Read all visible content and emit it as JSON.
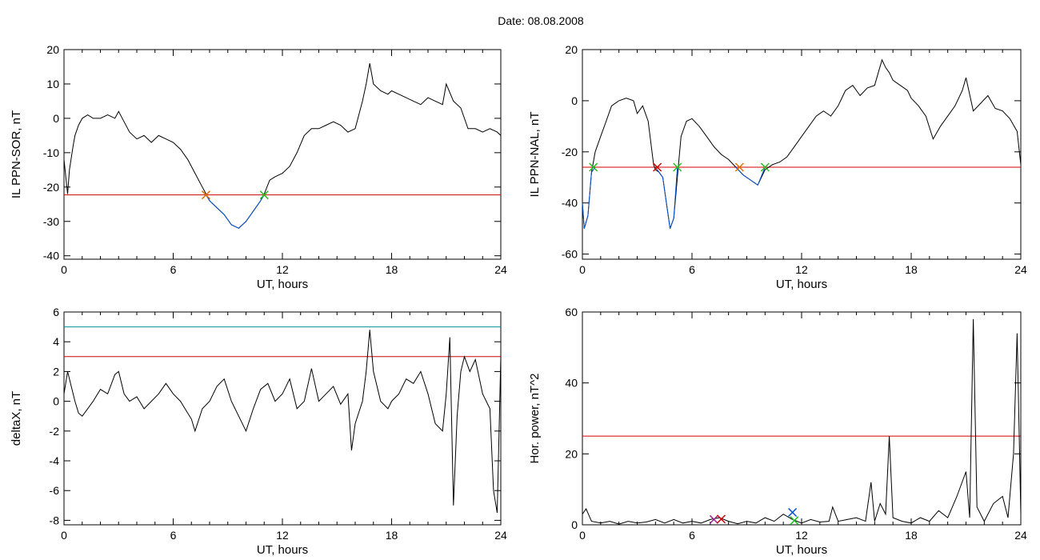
{
  "title": "Date:  08.08.2008",
  "colors": {
    "black": "#000000",
    "red": "#d00000",
    "blue": "#0050c8",
    "teal": "#009090",
    "green": "#20c020",
    "orange": "#e07000",
    "purple": "#a02090"
  },
  "chart_data": [
    {
      "type": "line",
      "ylabel": "IL PPN-SOR, nT",
      "xlabel": "UT, hours",
      "xlim": [
        0,
        24
      ],
      "ylim": [
        -41,
        20
      ],
      "xticks": [
        0,
        6,
        12,
        18,
        24
      ],
      "yticks": [
        -40,
        -30,
        -20,
        -10,
        0,
        10,
        20
      ],
      "threshold": {
        "value": -22.3,
        "color": "red"
      },
      "series": [
        {
          "color": "black",
          "x": [
            0,
            0.2,
            0.3,
            0.5,
            0.6,
            0.8,
            1,
            1.3,
            1.6,
            2,
            2.4,
            2.8,
            3,
            3.3,
            3.6,
            4,
            4.4,
            4.8,
            5.2,
            5.6,
            6,
            6.4,
            6.8,
            7.2,
            7.6,
            7.8,
            8,
            8.4,
            8.8,
            9.2,
            9.6,
            10,
            10.4,
            10.8,
            11,
            11.3,
            11.6,
            12,
            12.4,
            12.8,
            13.2,
            13.6,
            14,
            14.4,
            14.8,
            15.2,
            15.6,
            16,
            16.4,
            16.6,
            16.8,
            17,
            17.4,
            17.8,
            18,
            18.4,
            18.8,
            19.2,
            19.6,
            20,
            20.4,
            20.8,
            21,
            21.4,
            21.8,
            22.2,
            22.6,
            23,
            23.4,
            23.8,
            24
          ],
          "y": [
            -12,
            -22,
            -15,
            -8,
            -5,
            -2,
            0,
            1,
            0,
            0,
            1,
            0,
            2,
            -1,
            -4,
            -6,
            -5,
            -7,
            -5,
            -6,
            -7,
            -9,
            -12,
            -16,
            -20,
            -22,
            -24,
            -26,
            -28,
            -31,
            -32,
            -30,
            -27,
            -24,
            -22,
            -18,
            -17,
            -16,
            -14,
            -10,
            -5,
            -3,
            -3,
            -2,
            -1,
            -2,
            -4,
            -3,
            5,
            10,
            16,
            10,
            8,
            7,
            8,
            7,
            6,
            5,
            4,
            6,
            5,
            4,
            10,
            5,
            3,
            -3,
            -3,
            -4,
            -3,
            -4,
            -5
          ]
        },
        {
          "color": "blue",
          "x": [
            7.8,
            8,
            8.4,
            8.8,
            9.2,
            9.6,
            10,
            10.4,
            10.8,
            11
          ],
          "y": [
            -22.3,
            -24,
            -26,
            -28,
            -31,
            -32,
            -30,
            -27,
            -24,
            -22.3
          ]
        }
      ],
      "markers": [
        {
          "x": 7.8,
          "y": -22.3,
          "color": "orange"
        },
        {
          "x": 11,
          "y": -22.3,
          "color": "green"
        }
      ]
    },
    {
      "type": "line",
      "ylabel": "IL PPN-NAL, nT",
      "xlabel": "UT, hours",
      "xlim": [
        0,
        24
      ],
      "ylim": [
        -62,
        20
      ],
      "xticks": [
        0,
        6,
        12,
        18,
        24
      ],
      "yticks": [
        -60,
        -40,
        -20,
        0,
        20
      ],
      "threshold": {
        "value": -26,
        "color": "red"
      },
      "series": [
        {
          "color": "black",
          "x": [
            0,
            0.1,
            0.3,
            0.5,
            0.7,
            1,
            1.3,
            1.6,
            2,
            2.4,
            2.8,
            3,
            3.3,
            3.6,
            3.9,
            4,
            4.2,
            4.4,
            4.6,
            4.8,
            5,
            5.2,
            5.4,
            5.7,
            6,
            6.4,
            6.8,
            7.2,
            7.6,
            8,
            8.4,
            8.8,
            9.2,
            9.6,
            10,
            10.4,
            10.8,
            11.2,
            11.6,
            12,
            12.4,
            12.8,
            13.2,
            13.6,
            14,
            14.4,
            14.8,
            15.2,
            15.6,
            16,
            16.4,
            16.6,
            16.8,
            17,
            17.4,
            17.8,
            18,
            18.4,
            18.8,
            19.2,
            19.6,
            20,
            20.4,
            20.8,
            21,
            21.4,
            21.8,
            22.2,
            22.6,
            23,
            23.4,
            23.8,
            24
          ],
          "y": [
            -40,
            -50,
            -45,
            -28,
            -20,
            -14,
            -8,
            -2,
            0,
            1,
            0,
            -5,
            -2,
            -8,
            -25,
            -27,
            -28,
            -30,
            -40,
            -50,
            -46,
            -30,
            -14,
            -8,
            -7,
            -10,
            -14,
            -18,
            -21,
            -23,
            -26,
            -29,
            -31,
            -33,
            -27,
            -25,
            -24,
            -22,
            -18,
            -14,
            -10,
            -6,
            -4,
            -6,
            -2,
            4,
            6,
            2,
            5,
            6,
            16,
            13,
            11,
            8,
            6,
            4,
            1,
            -2,
            -6,
            -15,
            -10,
            -6,
            -2,
            4,
            9,
            -4,
            -1,
            2,
            -3,
            -4,
            -7,
            -12,
            -25
          ]
        },
        {
          "color": "blue",
          "x": [
            0,
            0.1,
            0.3,
            0.5,
            0.7
          ],
          "y": [
            -40,
            -50,
            -45,
            -28,
            -26
          ]
        },
        {
          "color": "blue",
          "x": [
            4,
            4.2,
            4.4,
            4.6,
            4.8,
            5,
            5.2
          ],
          "y": [
            -26,
            -28,
            -30,
            -40,
            -50,
            -46,
            -26
          ]
        },
        {
          "color": "blue",
          "x": [
            8.4,
            8.8,
            9.2,
            9.6,
            10
          ],
          "y": [
            -26,
            -29,
            -31,
            -33,
            -26
          ]
        }
      ],
      "markers": [
        {
          "x": 0.6,
          "y": -26,
          "color": "green"
        },
        {
          "x": 4.1,
          "y": -26,
          "color": "red"
        },
        {
          "x": 5.2,
          "y": -26,
          "color": "green"
        },
        {
          "x": 8.6,
          "y": -26,
          "color": "orange"
        },
        {
          "x": 10,
          "y": -26,
          "color": "green"
        }
      ]
    },
    {
      "type": "line",
      "ylabel": "deltaX, nT",
      "xlabel": "UT, hours",
      "xlim": [
        0,
        24
      ],
      "ylim": [
        -8.3,
        6
      ],
      "xticks": [
        0,
        6,
        12,
        18,
        24
      ],
      "yticks": [
        -8,
        -6,
        -4,
        -2,
        0,
        2,
        4,
        6
      ],
      "thresholds": [
        {
          "value": 5,
          "color": "teal"
        },
        {
          "value": 3,
          "color": "red"
        }
      ],
      "series": [
        {
          "color": "black",
          "x": [
            0,
            0.2,
            0.4,
            0.6,
            0.8,
            1,
            1.3,
            1.6,
            2,
            2.4,
            2.8,
            3,
            3.3,
            3.6,
            4,
            4.4,
            4.8,
            5.2,
            5.6,
            6,
            6.4,
            6.8,
            7,
            7.2,
            7.6,
            8,
            8.4,
            8.8,
            9.2,
            9.6,
            10,
            10.4,
            10.8,
            11.2,
            11.6,
            12,
            12.4,
            12.8,
            13.2,
            13.6,
            14,
            14.4,
            14.8,
            15.2,
            15.6,
            15.8,
            16,
            16.4,
            16.6,
            16.8,
            17,
            17.4,
            17.8,
            18,
            18.4,
            18.8,
            19.2,
            19.6,
            20,
            20.4,
            20.8,
            21,
            21.2,
            21.4,
            21.6,
            21.8,
            22,
            22.3,
            22.6,
            23,
            23.4,
            23.6,
            23.8,
            24
          ],
          "y": [
            0.5,
            2,
            1,
            0,
            -0.8,
            -1,
            -0.5,
            0,
            0.8,
            0.5,
            1.8,
            2,
            0.5,
            0,
            0.3,
            -0.5,
            0,
            0.5,
            1.2,
            0.5,
            0,
            -0.8,
            -1.2,
            -2,
            -0.5,
            0,
            1,
            1.5,
            0,
            -1,
            -2,
            -0.5,
            0.8,
            1.2,
            0,
            0.5,
            1.5,
            -0.5,
            0,
            2.2,
            0,
            0.5,
            1,
            -0.2,
            0.5,
            -3.3,
            -1.5,
            0,
            2,
            4.8,
            2,
            0,
            -0.5,
            0,
            0.5,
            1.5,
            1.2,
            2,
            0.5,
            -1.5,
            -2,
            0.5,
            4.3,
            -7,
            -1,
            2,
            3,
            2,
            2.8,
            0.5,
            -0.5,
            -6,
            -7.5,
            3
          ]
        }
      ]
    },
    {
      "type": "line",
      "ylabel": "Hor. power, nT^2",
      "xlabel": "UT, hours",
      "xlim": [
        0,
        24
      ],
      "ylim": [
        0,
        60
      ],
      "xticks": [
        0,
        6,
        12,
        18,
        24
      ],
      "yticks": [
        0,
        20,
        40,
        60
      ],
      "threshold": {
        "value": 25,
        "color": "red"
      },
      "series": [
        {
          "color": "black",
          "x": [
            0,
            0.2,
            0.5,
            1,
            1.5,
            2,
            2.5,
            3,
            3.5,
            4,
            4.5,
            5,
            5.5,
            6,
            6.5,
            7,
            7.5,
            8,
            8.5,
            9,
            9.5,
            10,
            10.5,
            11,
            11.5,
            12,
            12.5,
            13,
            13.5,
            13.7,
            14,
            14.5,
            15,
            15.5,
            15.8,
            16,
            16.3,
            16.6,
            16.8,
            17,
            17.5,
            18,
            18.5,
            19,
            19.5,
            20,
            20.5,
            21,
            21.2,
            21.4,
            21.6,
            22,
            22.5,
            23,
            23.3,
            23.6,
            23.8,
            24
          ],
          "y": [
            3,
            4.5,
            1,
            0.5,
            1,
            0.2,
            1,
            0.5,
            0.8,
            1.5,
            0.5,
            1.5,
            0.5,
            1,
            0.5,
            1.5,
            2,
            1,
            0.3,
            1,
            0.5,
            2,
            1,
            3,
            1.5,
            0.5,
            1.5,
            0.8,
            1,
            5,
            1,
            1.5,
            2,
            1,
            12,
            1,
            6,
            3,
            25,
            2,
            1,
            0.5,
            2,
            1,
            4,
            2,
            8,
            15,
            2,
            58,
            5,
            1,
            6,
            8,
            2,
            20,
            54,
            3
          ]
        }
      ],
      "markers": [
        {
          "x": 7.2,
          "y": 1.5,
          "color": "purple"
        },
        {
          "x": 7.6,
          "y": 1.6,
          "color": "red"
        },
        {
          "x": 11.5,
          "y": 3.5,
          "color": "blue"
        },
        {
          "x": 11.6,
          "y": 1.2,
          "color": "green"
        }
      ]
    }
  ]
}
